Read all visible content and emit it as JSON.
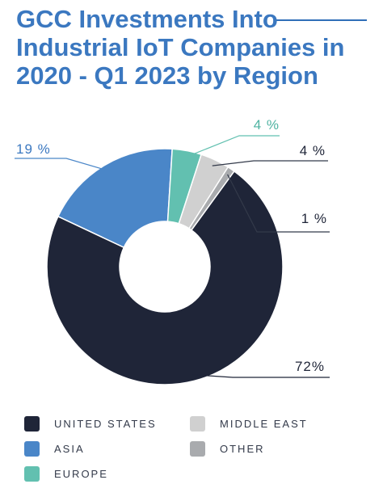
{
  "chart_data": {
    "type": "pie",
    "title": "GCC Investments Into Industrial IoT Companies in 2020 - Q1 2023 by Region",
    "slices": [
      {
        "name": "UNITED STATES",
        "value": 72,
        "label": "72%",
        "color": "#1f2538"
      },
      {
        "name": "ASIA",
        "value": 19,
        "label": "19 %",
        "color": "#4a86c8"
      },
      {
        "name": "EUROPE",
        "value": 4,
        "label": "4 %",
        "color": "#62c0b0"
      },
      {
        "name": "MIDDLE EAST",
        "value": 4,
        "label": "4 %",
        "color": "#d0d0d0"
      },
      {
        "name": "OTHER",
        "value": 1,
        "label": "1 %",
        "color": "#a9abae"
      }
    ],
    "legend_position": "bottom"
  }
}
